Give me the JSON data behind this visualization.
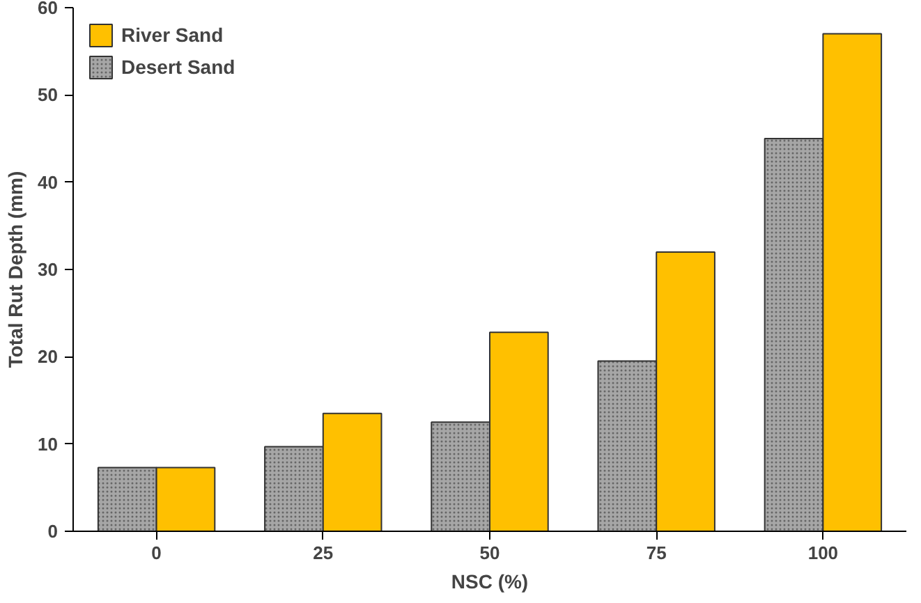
{
  "chart_data": {
    "type": "bar",
    "xlabel": "NSC (%)",
    "ylabel": "Total Rut Depth (mm)",
    "categories": [
      "0",
      "25",
      "50",
      "75",
      "100"
    ],
    "series": [
      {
        "name": "Desert Sand",
        "color": "#a6a6a6",
        "values": [
          7.3,
          9.7,
          12.5,
          19.5,
          45
        ]
      },
      {
        "name": "River Sand",
        "color": "#ffc000",
        "values": [
          7.3,
          13.5,
          22.8,
          32,
          57
        ]
      }
    ],
    "ylim": [
      0,
      60
    ],
    "yticks": [
      0,
      10,
      20,
      30,
      40,
      50,
      60
    ],
    "grid": false,
    "legend": "top left"
  }
}
